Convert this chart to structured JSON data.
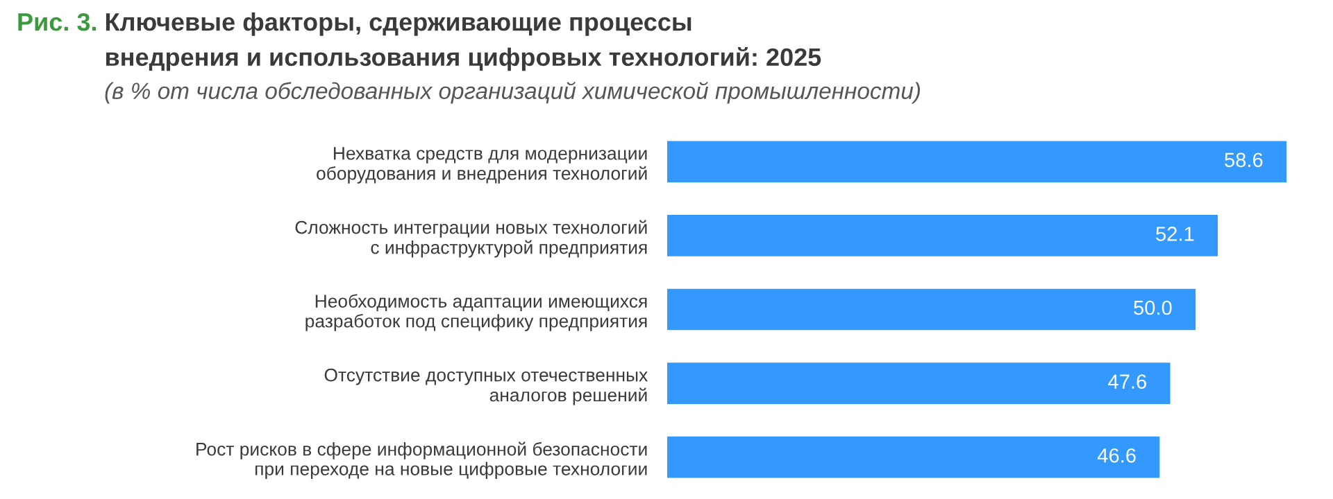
{
  "chart_data": {
    "type": "bar",
    "orientation": "horizontal",
    "title": "Рис. 3. Ключевые факторы, сдерживающие процессы\nвнедрения и использования цифровых технологий: 2025",
    "subtitle": "(в % от числа обследованных организаций химической промышленности)",
    "categories": [
      "Нехватка средств для модернизации\nоборудования и внедрения технологий",
      "Сложность интеграции новых технологий\nс инфраструктурой предприятия",
      "Необходимость адаптации имеющихся\nразработок под специфику предприятия",
      "Отсутствие доступных отечественных\nаналогов решений",
      "Рост рисков в сфере информационной безопасности\nпри переходе на новые цифровые технологии"
    ],
    "values": [
      58.6,
      52.1,
      50.0,
      47.6,
      46.6
    ],
    "color": "#3399ff",
    "value_labels": [
      "58.6",
      "52.1",
      "50.0",
      "47.6",
      "46.6"
    ]
  }
}
